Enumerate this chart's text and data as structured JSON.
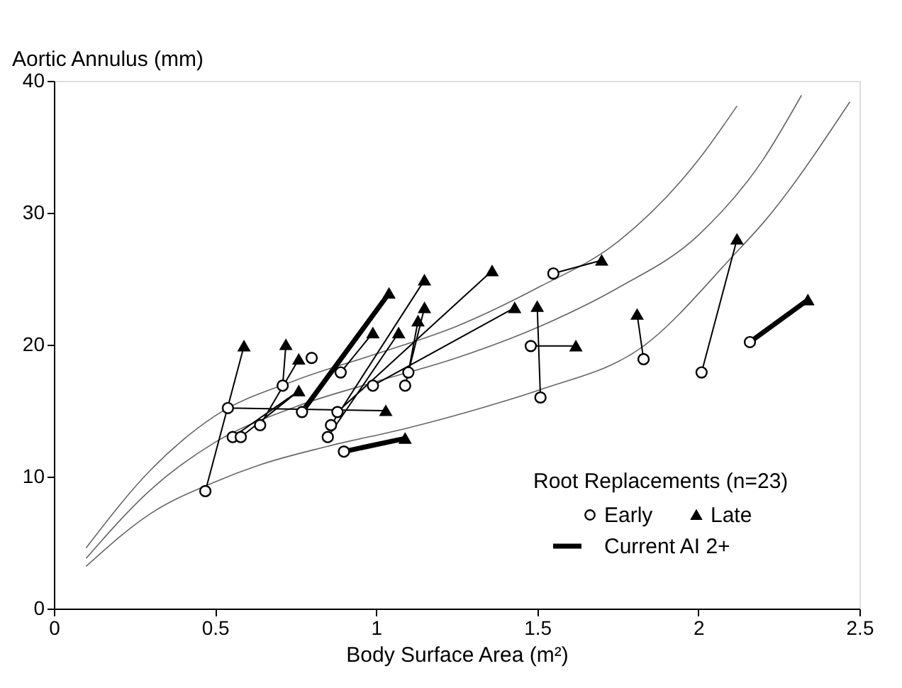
{
  "chart_data": {
    "type": "scatter",
    "xlabel": "Body Surface Area (m²)",
    "ylabel": "Aortic Annulus (mm)",
    "legend_title": "Root Replacements (n=23)",
    "xlim": [
      0,
      2.5
    ],
    "xticks": [
      0,
      0.5,
      1,
      1.5,
      2,
      2.5
    ],
    "ylim": [
      0,
      40
    ],
    "yticks": [
      0,
      10,
      20,
      30,
      40
    ],
    "grid": false,
    "legend": "bottom right",
    "series": [
      {
        "type": "line",
        "color": "#666666",
        "x": [
          0.1,
          0.3,
          0.5,
          0.75,
          1.0,
          1.25,
          1.5,
          1.75,
          2.0,
          2.12
        ],
        "values": [
          4.6,
          10.5,
          14.6,
          17.3,
          19.3,
          21.4,
          24.3,
          27.8,
          34.0,
          38.1
        ]
      },
      {
        "type": "line",
        "color": "#666666",
        "x": [
          0.1,
          0.3,
          0.5,
          0.75,
          1.0,
          1.25,
          1.5,
          1.75,
          2.0,
          2.2,
          2.32
        ],
        "values": [
          3.8,
          9.0,
          12.6,
          15.3,
          17.2,
          19.0,
          21.3,
          24.3,
          28.3,
          34.0,
          38.9
        ]
      },
      {
        "type": "line",
        "color": "#666666",
        "x": [
          0.1,
          0.3,
          0.5,
          0.64,
          0.85,
          1.1,
          1.34,
          1.51,
          1.83,
          2.11,
          2.2,
          2.47
        ],
        "values": [
          3.2,
          7.2,
          9.6,
          10.9,
          12.3,
          13.7,
          15.3,
          16.6,
          19.9,
          26.8,
          29.2,
          38.4
        ]
      },
      {
        "type": "line",
        "color": "#000000",
        "x": [
          0.47,
          0.59,
          null,
          0.54,
          1.03,
          null,
          0.555,
          0.76,
          null,
          0.58,
          0.76,
          null,
          0.64,
          0.76,
          null,
          0.71,
          0.72,
          null,
          0.89,
          0.99,
          null,
          0.85,
          1.07,
          null,
          0.86,
          1.15,
          null,
          0.88,
          1.36,
          null,
          0.99,
          1.43,
          null,
          1.09,
          1.15,
          null,
          1.1,
          1.13,
          null,
          1.48,
          1.62,
          null,
          1.51,
          1.5,
          null,
          1.55,
          1.7,
          null,
          1.83,
          1.81,
          null,
          2.01,
          2.12
        ],
        "values": [
          8.9,
          19.9,
          null,
          15.2,
          15.0,
          null,
          13.0,
          16.5,
          null,
          13.0,
          16.5,
          null,
          13.9,
          18.9,
          null,
          16.9,
          20.0,
          null,
          17.9,
          20.9,
          null,
          13.0,
          20.9,
          null,
          13.9,
          24.9,
          null,
          14.9,
          25.6,
          null,
          16.9,
          22.8,
          null,
          16.9,
          22.8,
          null,
          17.9,
          21.8,
          null,
          19.9,
          19.9,
          null,
          16.0,
          22.9,
          null,
          25.4,
          26.4,
          null,
          18.9,
          22.3,
          null,
          17.9,
          28.0
        ]
      },
      {
        "type": "line",
        "name": "Current AI 2+",
        "color": "#000000",
        "x": [
          0.77,
          1.04,
          null,
          0.9,
          1.09,
          null,
          2.16,
          2.34
        ],
        "values": [
          14.9,
          23.9,
          null,
          11.9,
          12.9,
          null,
          20.2,
          23.4
        ]
      },
      {
        "name": "Early",
        "marker": "circle",
        "color": "#000000",
        "x": [
          0.47,
          0.54,
          0.555,
          0.58,
          0.64,
          0.71,
          0.77,
          0.8,
          0.85,
          0.86,
          0.88,
          0.89,
          0.9,
          0.99,
          1.09,
          1.1,
          1.48,
          1.51,
          1.55,
          1.83,
          2.01,
          2.16
        ],
        "values": [
          8.9,
          15.2,
          13.0,
          13.0,
          13.9,
          16.9,
          14.9,
          19.0,
          13.0,
          13.9,
          14.9,
          17.9,
          11.9,
          16.9,
          16.9,
          17.9,
          19.9,
          16.0,
          25.4,
          18.9,
          17.9,
          20.2
        ]
      },
      {
        "name": "Late",
        "marker": "triangle",
        "color": "#000000",
        "x": [
          0.59,
          1.03,
          0.76,
          0.76,
          0.72,
          1.04,
          0.99,
          1.07,
          1.15,
          1.36,
          1.43,
          1.15,
          1.13,
          1.09,
          1.62,
          1.5,
          1.7,
          1.81,
          2.12,
          2.34
        ],
        "values": [
          19.9,
          15.0,
          16.5,
          18.9,
          20.0,
          23.9,
          20.9,
          20.9,
          24.9,
          25.6,
          22.8,
          22.8,
          21.8,
          12.9,
          19.9,
          22.9,
          26.4,
          22.3,
          28.0,
          23.4
        ]
      }
    ]
  }
}
